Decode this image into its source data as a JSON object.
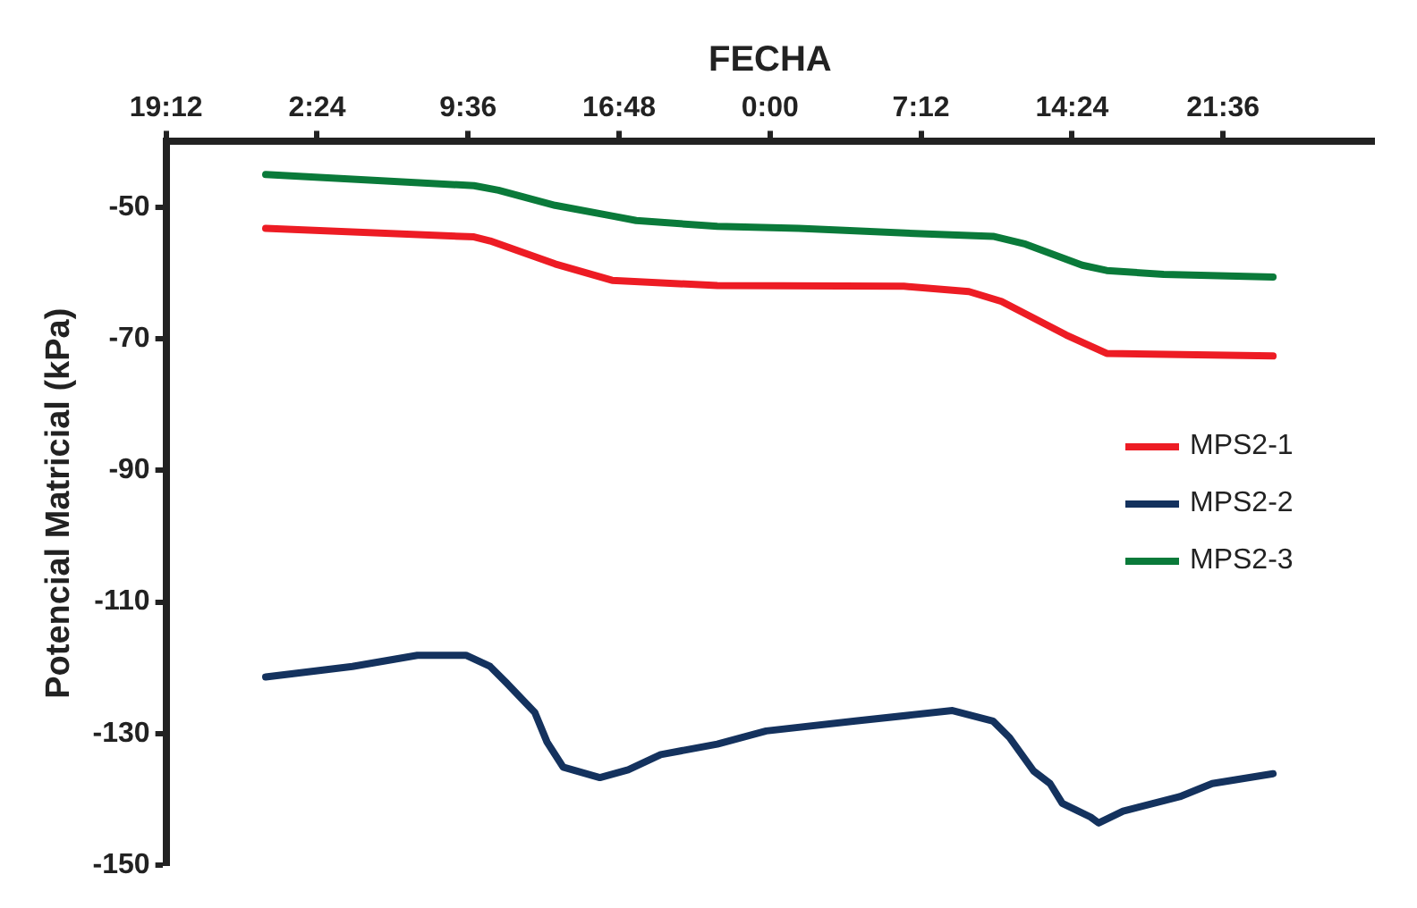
{
  "chart_data": {
    "type": "line",
    "xlabel": "FECHA",
    "ylabel": "Potencial Matricial (kPa)",
    "xlim": [
      "2000-01-01T19:12",
      "2000-01-04T04:48"
    ],
    "xticks": [
      {
        "value": "2000-01-01T19:12",
        "label": "19:12"
      },
      {
        "value": "2000-01-02T02:24",
        "label": "2:24"
      },
      {
        "value": "2000-01-02T09:36",
        "label": "9:36"
      },
      {
        "value": "2000-01-02T16:48",
        "label": "16:48"
      },
      {
        "value": "2000-01-03T00:00",
        "label": "0:00"
      },
      {
        "value": "2000-01-03T07:12",
        "label": "7:12"
      },
      {
        "value": "2000-01-03T14:24",
        "label": "14:24"
      },
      {
        "value": "2000-01-03T21:36",
        "label": "21:36"
      }
    ],
    "ylim": [
      -150,
      -40
    ],
    "yticks": [
      -150,
      -130,
      -110,
      -90,
      -70,
      -50
    ],
    "grid": false,
    "legend": "right",
    "marker": "none",
    "line_style": "solid",
    "series": [
      {
        "name": "MPS2-1",
        "color": "#ed1c24",
        "x": [
          "2000-01-01T23:57",
          "2000-01-02T09:53",
          "2000-01-02T10:39",
          "2000-01-02T13:45",
          "2000-01-02T16:28",
          "2000-01-02T21:29",
          "2000-01-03T06:23",
          "2000-01-03T09:29",
          "2000-01-03T11:02",
          "2000-01-03T14:07",
          "2000-01-03T16:03",
          "2000-01-03T23:59"
        ],
        "values": [
          -53.2,
          -54.5,
          -55.1,
          -58.6,
          -61.1,
          -61.9,
          -62.0,
          -62.8,
          -64.3,
          -69.4,
          -72.2,
          -72.6
        ]
      },
      {
        "name": "MPS2-2",
        "color": "#14325e",
        "x": [
          "2000-01-01T23:57",
          "2000-01-02T04:05",
          "2000-01-02T07:11",
          "2000-01-02T09:30",
          "2000-01-02T10:39",
          "2000-01-02T11:26",
          "2000-01-02T12:47",
          "2000-01-02T13:22",
          "2000-01-02T14:08",
          "2000-01-02T15:53",
          "2000-01-02T17:14",
          "2000-01-02T18:47",
          "2000-01-02T21:29",
          "2000-01-02T23:49",
          "2000-01-03T04:04",
          "2000-01-03T08:42",
          "2000-01-03T10:38",
          "2000-01-03T11:25",
          "2000-01-03T12:34",
          "2000-01-03T13:21",
          "2000-01-03T13:56",
          "2000-01-03T15:17",
          "2000-01-03T15:40",
          "2000-01-03T16:50",
          "2000-01-03T19:32",
          "2000-01-03T21:05",
          "2000-01-03T23:59"
        ],
        "values": [
          -121.4,
          -119.8,
          -118.1,
          -118.1,
          -119.8,
          -122.3,
          -126.8,
          -131.3,
          -135.1,
          -136.7,
          -135.5,
          -133.2,
          -131.6,
          -129.6,
          -128.1,
          -126.5,
          -128.1,
          -130.6,
          -135.7,
          -137.6,
          -140.6,
          -142.7,
          -143.6,
          -141.8,
          -139.6,
          -137.6,
          -136.1
        ]
      },
      {
        "name": "MPS2-3",
        "color": "#0a7a3a",
        "x": [
          "2000-01-01T23:57",
          "2000-01-02T09:53",
          "2000-01-02T11:03",
          "2000-01-02T13:45",
          "2000-01-02T16:28",
          "2000-01-02T17:37",
          "2000-01-02T21:29",
          "2000-01-03T01:22",
          "2000-01-03T07:10",
          "2000-01-03T10:38",
          "2000-01-03T12:11",
          "2000-01-03T14:53",
          "2000-01-03T16:03",
          "2000-01-03T18:46",
          "2000-01-03T23:59"
        ],
        "values": [
          -45.0,
          -46.7,
          -47.4,
          -49.7,
          -51.3,
          -52.0,
          -52.9,
          -53.2,
          -54.0,
          -54.4,
          -55.6,
          -58.8,
          -59.6,
          -60.2,
          -60.6
        ]
      }
    ]
  }
}
